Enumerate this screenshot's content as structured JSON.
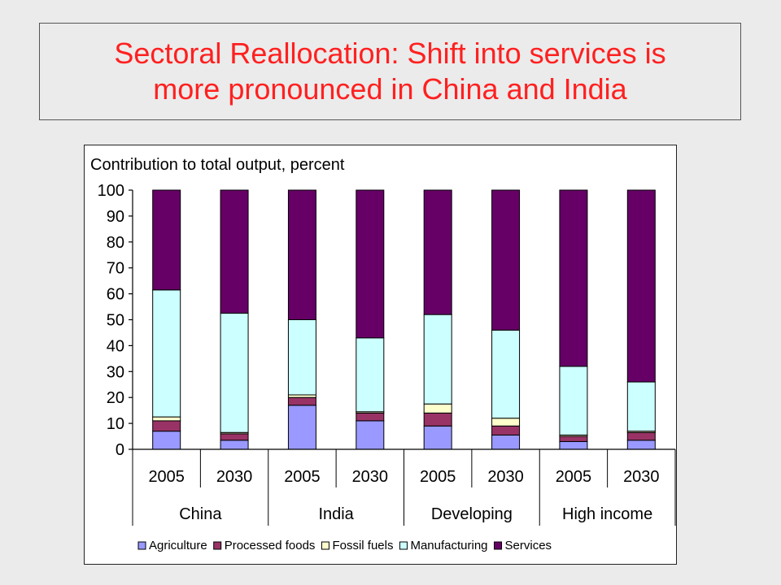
{
  "slide": {
    "title_line1": "Sectoral Reallocation: Shift into services is",
    "title_line2": "more pronounced in China and India"
  },
  "chart_data": {
    "type": "bar",
    "stacked": true,
    "title": "Contribution to total output, percent",
    "xlabel": "",
    "ylabel": "",
    "ylim": [
      0,
      100
    ],
    "yticks": [
      0,
      10,
      20,
      30,
      40,
      50,
      60,
      70,
      80,
      90,
      100
    ],
    "groups": [
      "China",
      "India",
      "Developing",
      "High income"
    ],
    "categories": [
      "2005",
      "2030",
      "2005",
      "2030",
      "2005",
      "2030",
      "2005",
      "2030"
    ],
    "category_group": [
      0,
      0,
      1,
      1,
      2,
      2,
      3,
      3
    ],
    "legend_position": "bottom",
    "grid": false,
    "series": [
      {
        "name": "Agriculture",
        "color": "#9999ff",
        "values": [
          7,
          3.5,
          17,
          11,
          9,
          5.5,
          3,
          3.5
        ]
      },
      {
        "name": "Processed foods",
        "color": "#993366",
        "values": [
          4,
          2.5,
          3,
          3,
          5,
          3.5,
          2,
          3
        ]
      },
      {
        "name": "Fossil fuels",
        "color": "#ffffcc",
        "values": [
          1.5,
          0.5,
          1,
          0.5,
          3.5,
          3,
          0.5,
          0.5
        ]
      },
      {
        "name": "Manufacturing",
        "color": "#ccffff",
        "values": [
          49,
          46,
          29,
          28.5,
          34.5,
          34,
          26.5,
          19
        ]
      },
      {
        "name": "Services",
        "color": "#660066",
        "values": [
          38.5,
          47.5,
          50,
          57,
          48,
          54,
          68,
          74
        ]
      }
    ]
  }
}
